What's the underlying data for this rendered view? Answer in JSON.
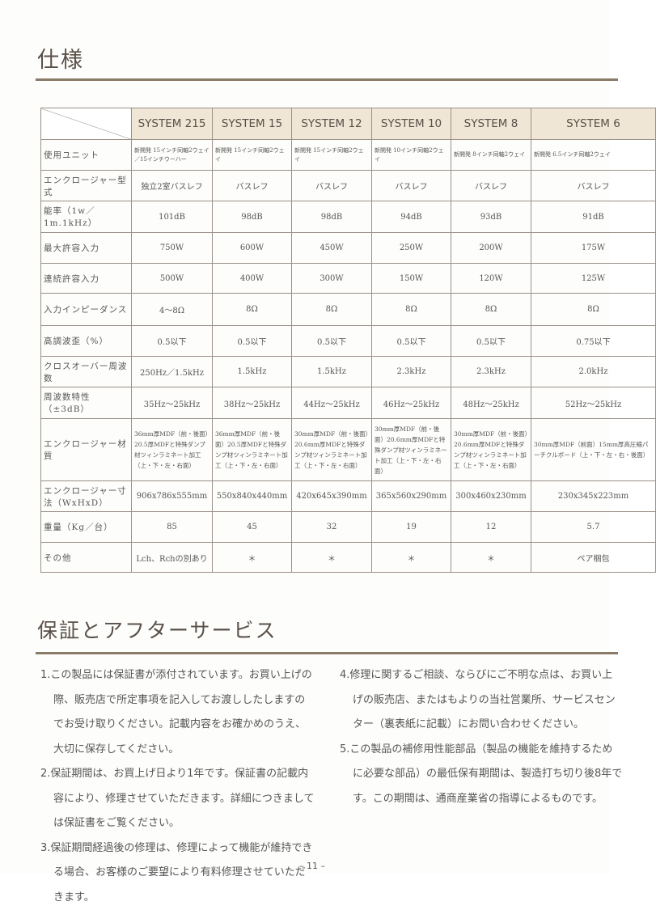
{
  "spec": {
    "title": "仕様",
    "headers": [
      "SYSTEM 215",
      "SYSTEM 15",
      "SYSTEM 12",
      "SYSTEM 10",
      "SYSTEM 8",
      "SYSTEM 6"
    ],
    "rows": [
      {
        "label": "使用ユニット",
        "values": [
          "新開発 15インチ同軸2ウェイ／15インチウーハー",
          "新開発 15インチ同軸2ウェイ",
          "新開発 15インチ同軸2ウェイ",
          "新開発 10インチ同軸2ウェイ",
          "新開発 8インチ同軸2ウェイ",
          "新開発 6.5インチ同軸2ウェイ"
        ]
      },
      {
        "label": "エンクロージャー型式",
        "values": [
          "独立2室バスレフ",
          "バスレフ",
          "バスレフ",
          "バスレフ",
          "バスレフ",
          "バスレフ"
        ]
      },
      {
        "label": "能率（1w／1m.1kHz）",
        "values": [
          "101dB",
          "98dB",
          "98dB",
          "94dB",
          "93dB",
          "91dB"
        ]
      },
      {
        "label": "最大許容入力",
        "values": [
          "750W",
          "600W",
          "450W",
          "250W",
          "200W",
          "175W"
        ]
      },
      {
        "label": "連続許容入力",
        "values": [
          "500W",
          "400W",
          "300W",
          "150W",
          "120W",
          "125W"
        ]
      },
      {
        "label": "入力インピーダンス",
        "values": [
          "4〜8Ω",
          "8Ω",
          "8Ω",
          "8Ω",
          "8Ω",
          "8Ω"
        ]
      },
      {
        "label": "高調波歪（%）",
        "values": [
          "0.5以下",
          "0.5以下",
          "0.5以下",
          "0.5以下",
          "0.5以下",
          "0.75以下"
        ]
      },
      {
        "label": "クロスオーバー周波数",
        "values": [
          "250Hz／1.5kHz",
          "1.5kHz",
          "1.5kHz",
          "2.3kHz",
          "2.3kHz",
          "2.0kHz"
        ]
      },
      {
        "label": "周波数特性（±3dB）",
        "values": [
          "35Hz〜25kHz",
          "38Hz〜25kHz",
          "44Hz〜25kHz",
          "46Hz〜25kHz",
          "48Hz〜25kHz",
          "52Hz〜25kHz"
        ]
      },
      {
        "label": "エンクロージャー材質",
        "values": [
          "36mm厚MDF（前・後面）20.5厚MDFと特殊ダンプ材ツィンラミネート加工（上・下・左・右面）",
          "36mm厚MDF（前・後面）20.5厚MDFと特殊ダンプ材ツィンラミネート加工（上・下・左・右面）",
          "30mm厚MDF（前・後面）20.6mm厚MDFと特殊ダンプ材ツィンラミネート加工（上・下・左・右面）",
          "30mm厚MDF（前・後面）20.6mm厚MDFと特殊ダンプ材ツィンラミネート加工（上・下・左・右面）",
          "30mm厚MDF（前・後面）20.6mm厚MDFと特殊ダンプ材ツィンラミネート加工（上・下・左・右面）",
          "30mm厚MDF（前面）15mm厚高圧縮パーチクルボード（上・下・左・右・後面）"
        ]
      },
      {
        "label": "エンクロージャー寸法（WxHxD）",
        "values": [
          "906x786x555mm",
          "550x840x440mm",
          "420x645x390mm",
          "365x560x290mm",
          "300x460x230mm",
          "230x345x223mm"
        ]
      },
      {
        "label": "重量（Kg／台）",
        "values": [
          "85",
          "45",
          "32",
          "19",
          "12",
          "5.7"
        ]
      },
      {
        "label": "その他",
        "values": [
          "Lch、Rchの別あり",
          "＊",
          "＊",
          "＊",
          "＊",
          "ペア梱包"
        ]
      }
    ]
  },
  "warranty": {
    "title": "保証とアフターサービス",
    "left": [
      "1.この製品には保証書が添付されています。お買い上げの際、販売店で所定事項を記入してお渡ししたしますのでお受け取りください。記載内容をお確かめのうえ、大切に保存してください。",
      "2.保証期間は、お買上げ日より1年です。保証書の記載内容により、修理させていただきます。詳細につきましては保証書をご覧ください。",
      "3.保証期間経過後の修理は、修理によって機能が維持できる場合、お客様のご要望により有料修理させていただきます。"
    ],
    "right": [
      "4.修理に関するご相談、ならびにご不明な点は、お買い上げの販売店、またはもよりの当社営業所、サービスセンター（裏表紙に記載）にお問い合わせください。",
      "5.この製品の補修用性能部品（製品の機能を維持するために必要な部品）の最低保有期間は、製造打ち切り後8年です。この期間は、通商産業省の指導によるものです。"
    ]
  },
  "page_number": "– 11 –"
}
